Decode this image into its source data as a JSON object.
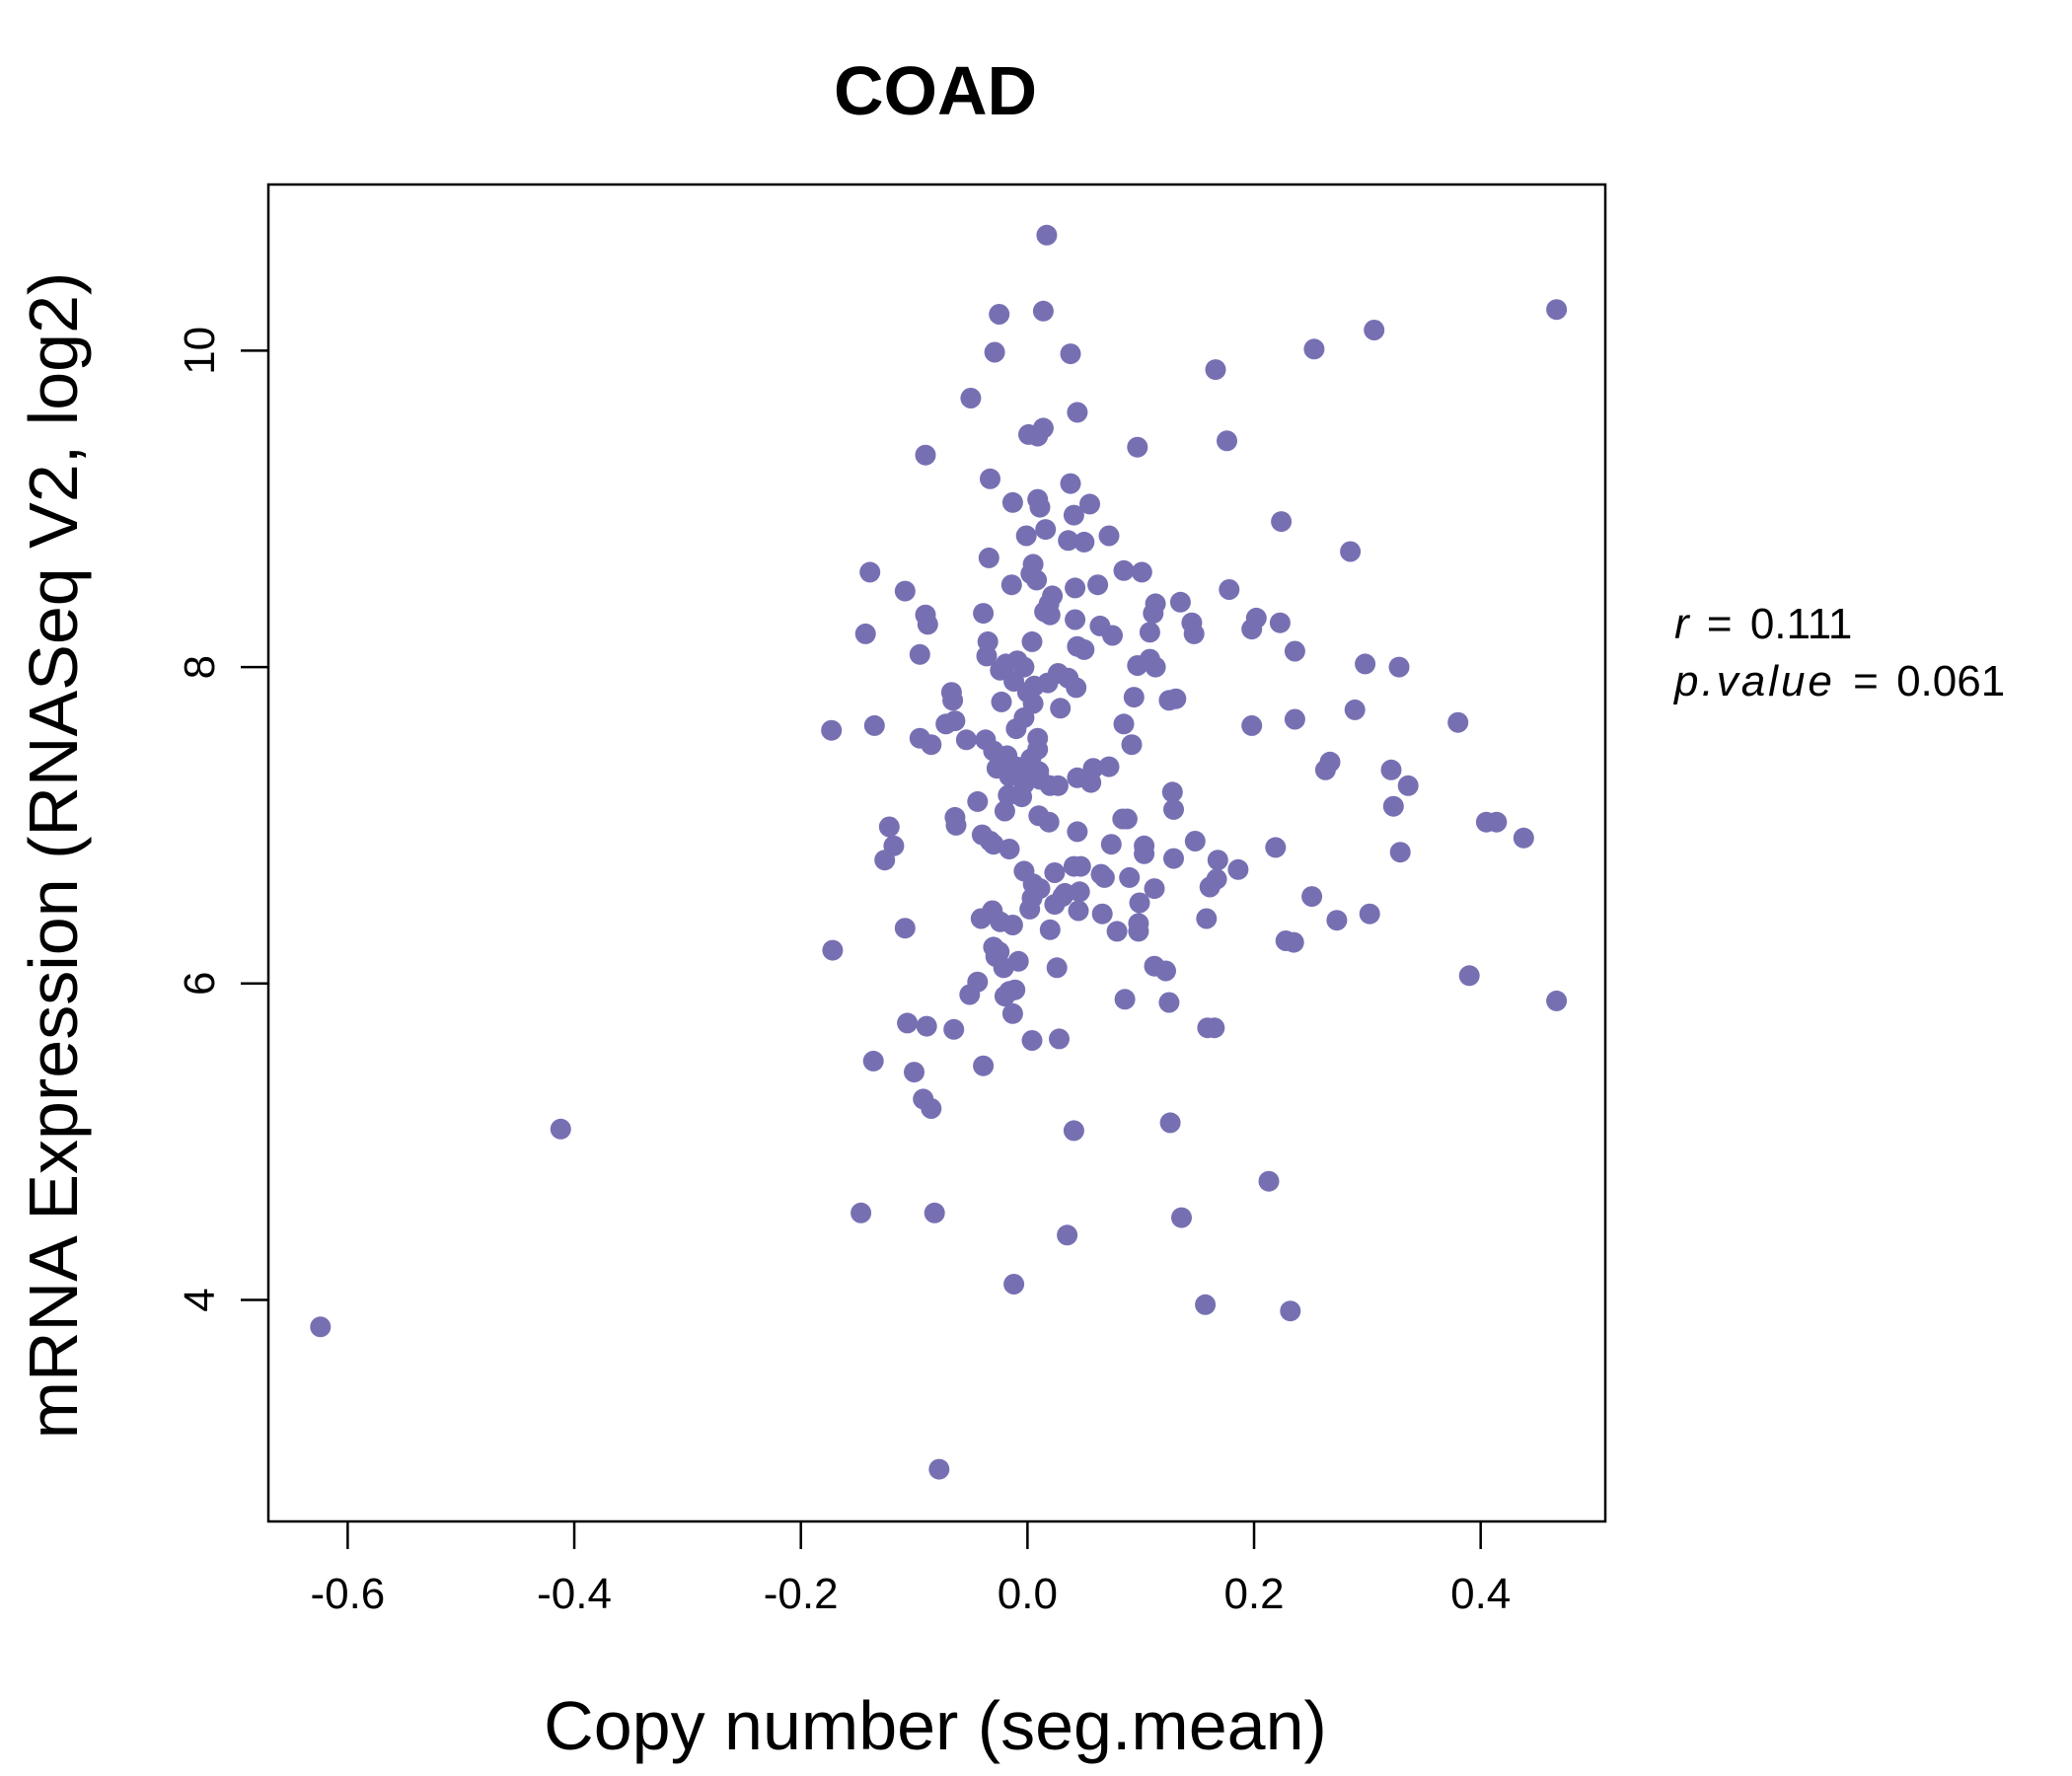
{
  "chart_data": {
    "type": "scatter",
    "title": "COAD",
    "xlabel": "Copy number (seg.mean)",
    "ylabel": "mRNA Expression (RNASeq V2, log2)",
    "xlim": [
      -0.67,
      0.51
    ],
    "ylim": [
      2.6,
      11.05
    ],
    "xticks": [
      -0.6,
      -0.4,
      -0.2,
      0.0,
      0.2,
      0.4
    ],
    "xtick_labels": [
      "-0.6",
      "-0.4",
      "-0.2",
      "0.0",
      "0.2",
      "0.4"
    ],
    "yticks": [
      4,
      6,
      8,
      10
    ],
    "ytick_labels": [
      "4",
      "6",
      "8",
      "10"
    ],
    "grid": false,
    "colors": {
      "points": "#7670b3",
      "title": "#7670b3"
    },
    "annotation": {
      "r_symbol": "r",
      "r_value": "0.111",
      "p_symbol": "p.value",
      "p_value": "0.061"
    },
    "series": [
      {
        "points": [
          [
            -0.624,
            3.83
          ],
          [
            -0.412,
            5.08
          ],
          [
            -0.078,
            2.93
          ],
          [
            0.017,
            10.73
          ],
          [
            0.467,
            10.26
          ],
          [
            -0.025,
            10.23
          ],
          [
            0.014,
            10.25
          ],
          [
            0.306,
            10.13
          ],
          [
            -0.029,
            9.99
          ],
          [
            0.038,
            9.98
          ],
          [
            0.253,
            10.01
          ],
          [
            0.166,
            9.88
          ],
          [
            -0.05,
            9.7
          ],
          [
            0.044,
            9.61
          ],
          [
            0.014,
            9.51
          ],
          [
            0.001,
            9.47
          ],
          [
            0.009,
            9.46
          ],
          [
            0.176,
            9.43
          ],
          [
            0.097,
            9.39
          ],
          [
            -0.09,
            9.34
          ],
          [
            -0.033,
            9.19
          ],
          [
            0.038,
            9.16
          ],
          [
            -0.013,
            9.04
          ],
          [
            0.009,
            9.06
          ],
          [
            0.011,
            9.01
          ],
          [
            0.055,
            9.03
          ],
          [
            0.041,
            8.96
          ],
          [
            0.224,
            8.92
          ],
          [
            0.016,
            8.87
          ],
          [
            -0.001,
            8.83
          ],
          [
            0.036,
            8.8
          ],
          [
            0.05,
            8.79
          ],
          [
            0.072,
            8.83
          ],
          [
            -0.034,
            8.69
          ],
          [
            0.285,
            8.73
          ],
          [
            0.005,
            8.65
          ],
          [
            0.003,
            8.59
          ],
          [
            -0.139,
            8.6
          ],
          [
            0.085,
            8.61
          ],
          [
            0.101,
            8.6
          ],
          [
            0.008,
            8.55
          ],
          [
            -0.014,
            8.52
          ],
          [
            0.042,
            8.5
          ],
          [
            0.062,
            8.52
          ],
          [
            -0.108,
            8.48
          ],
          [
            0.178,
            8.49
          ],
          [
            0.022,
            8.45
          ],
          [
            0.019,
            8.4
          ],
          [
            0.113,
            8.4
          ],
          [
            0.135,
            8.41
          ],
          [
            0.015,
            8.35
          ],
          [
            0.02,
            8.33
          ],
          [
            -0.039,
            8.34
          ],
          [
            -0.09,
            8.33
          ],
          [
            -0.088,
            8.27
          ],
          [
            0.042,
            8.3
          ],
          [
            0.064,
            8.26
          ],
          [
            0.111,
            8.34
          ],
          [
            0.145,
            8.28
          ],
          [
            0.202,
            8.31
          ],
          [
            0.223,
            8.28
          ],
          [
            -0.143,
            8.21
          ],
          [
            0.075,
            8.2
          ],
          [
            0.108,
            8.22
          ],
          [
            0.147,
            8.21
          ],
          [
            0.198,
            8.24
          ],
          [
            -0.035,
            8.16
          ],
          [
            0.004,
            8.16
          ],
          [
            0.044,
            8.13
          ],
          [
            0.05,
            8.11
          ],
          [
            -0.095,
            8.08
          ],
          [
            -0.036,
            8.07
          ],
          [
            0.236,
            8.1
          ],
          [
            -0.019,
            8.02
          ],
          [
            -0.009,
            8.04
          ],
          [
            -0.003,
            8.0
          ],
          [
            0.108,
            8.05
          ],
          [
            0.097,
            8.01
          ],
          [
            0.113,
            8.0
          ],
          [
            0.298,
            8.02
          ],
          [
            0.328,
            8.0
          ],
          [
            -0.024,
            7.98
          ],
          [
            0.027,
            7.96
          ],
          [
            0.036,
            7.93
          ],
          [
            -0.012,
            7.91
          ],
          [
            0.018,
            7.9
          ],
          [
            0.006,
            7.88
          ],
          [
            0.043,
            7.87
          ],
          [
            0.0,
            7.84
          ],
          [
            -0.067,
            7.84
          ],
          [
            -0.066,
            7.79
          ],
          [
            -0.023,
            7.78
          ],
          [
            0.005,
            7.77
          ],
          [
            0.094,
            7.81
          ],
          [
            0.125,
            7.79
          ],
          [
            0.131,
            7.8
          ],
          [
            0.029,
            7.74
          ],
          [
            0.289,
            7.73
          ],
          [
            -0.064,
            7.66
          ],
          [
            -0.072,
            7.64
          ],
          [
            -0.01,
            7.61
          ],
          [
            -0.003,
            7.68
          ],
          [
            0.085,
            7.64
          ],
          [
            0.198,
            7.63
          ],
          [
            0.236,
            7.67
          ],
          [
            0.38,
            7.65
          ],
          [
            -0.173,
            7.6
          ],
          [
            -0.135,
            7.63
          ],
          [
            -0.095,
            7.55
          ],
          [
            -0.085,
            7.51
          ],
          [
            -0.054,
            7.54
          ],
          [
            -0.037,
            7.54
          ],
          [
            0.009,
            7.55
          ],
          [
            0.092,
            7.51
          ],
          [
            -0.03,
            7.47
          ],
          [
            -0.018,
            7.44
          ],
          [
            0.003,
            7.42
          ],
          [
            0.009,
            7.48
          ],
          [
            -0.027,
            7.36
          ],
          [
            -0.01,
            7.37
          ],
          [
            0.0,
            7.38
          ],
          [
            0.01,
            7.34
          ],
          [
            0.058,
            7.36
          ],
          [
            0.072,
            7.37
          ],
          [
            0.267,
            7.4
          ],
          [
            0.263,
            7.35
          ],
          [
            0.321,
            7.35
          ],
          [
            -0.016,
            7.31
          ],
          [
            0.011,
            7.29
          ],
          [
            0.044,
            7.3
          ],
          [
            0.056,
            7.27
          ],
          [
            -0.003,
            7.26
          ],
          [
            0.02,
            7.25
          ],
          [
            0.027,
            7.25
          ],
          [
            0.128,
            7.21
          ],
          [
            0.336,
            7.25
          ],
          [
            -0.017,
            7.19
          ],
          [
            -0.005,
            7.18
          ],
          [
            -0.044,
            7.15
          ],
          [
            0.323,
            7.12
          ],
          [
            0.129,
            7.1
          ],
          [
            -0.02,
            7.09
          ],
          [
            0.01,
            7.06
          ],
          [
            0.084,
            7.04
          ],
          [
            0.088,
            7.04
          ],
          [
            -0.064,
            7.05
          ],
          [
            -0.063,
            7.0
          ],
          [
            0.019,
            7.02
          ],
          [
            -0.122,
            6.99
          ],
          [
            0.405,
            7.02
          ],
          [
            0.414,
            7.02
          ],
          [
            -0.04,
            6.94
          ],
          [
            0.044,
            6.96
          ],
          [
            0.148,
            6.9
          ],
          [
            0.438,
            6.92
          ],
          [
            -0.033,
            6.9
          ],
          [
            -0.03,
            6.88
          ],
          [
            -0.118,
            6.87
          ],
          [
            0.074,
            6.88
          ],
          [
            0.103,
            6.87
          ],
          [
            -0.016,
            6.85
          ],
          [
            0.219,
            6.86
          ],
          [
            0.329,
            6.83
          ],
          [
            -0.126,
            6.78
          ],
          [
            0.103,
            6.82
          ],
          [
            0.129,
            6.79
          ],
          [
            0.041,
            6.74
          ],
          [
            0.047,
            6.74
          ],
          [
            0.168,
            6.78
          ],
          [
            -0.003,
            6.71
          ],
          [
            0.024,
            6.7
          ],
          [
            0.065,
            6.69
          ],
          [
            0.068,
            6.67
          ],
          [
            0.09,
            6.67
          ],
          [
            0.186,
            6.72
          ],
          [
            0.167,
            6.66
          ],
          [
            0.005,
            6.63
          ],
          [
            0.011,
            6.6
          ],
          [
            0.046,
            6.58
          ],
          [
            0.112,
            6.6
          ],
          [
            0.161,
            6.61
          ],
          [
            0.033,
            6.57
          ],
          [
            0.004,
            6.54
          ],
          [
            0.031,
            6.55
          ],
          [
            0.099,
            6.51
          ],
          [
            0.251,
            6.55
          ],
          [
            0.024,
            6.5
          ],
          [
            0.045,
            6.46
          ],
          [
            0.066,
            6.44
          ],
          [
            -0.031,
            6.46
          ],
          [
            -0.041,
            6.41
          ],
          [
            0.002,
            6.47
          ],
          [
            0.302,
            6.44
          ],
          [
            0.158,
            6.41
          ],
          [
            0.273,
            6.4
          ],
          [
            -0.108,
            6.35
          ],
          [
            -0.024,
            6.39
          ],
          [
            -0.013,
            6.37
          ],
          [
            0.098,
            6.38
          ],
          [
            0.02,
            6.34
          ],
          [
            0.079,
            6.33
          ],
          [
            0.098,
            6.33
          ],
          [
            0.228,
            6.27
          ],
          [
            0.235,
            6.26
          ],
          [
            -0.172,
            6.21
          ],
          [
            -0.03,
            6.23
          ],
          [
            -0.025,
            6.2
          ],
          [
            -0.028,
            6.17
          ],
          [
            -0.008,
            6.14
          ],
          [
            -0.021,
            6.1
          ],
          [
            0.112,
            6.11
          ],
          [
            0.026,
            6.1
          ],
          [
            0.122,
            6.08
          ],
          [
            0.39,
            6.05
          ],
          [
            -0.044,
            6.01
          ],
          [
            -0.016,
            5.95
          ],
          [
            -0.011,
            5.96
          ],
          [
            -0.051,
            5.93
          ],
          [
            -0.02,
            5.92
          ],
          [
            0.086,
            5.9
          ],
          [
            0.125,
            5.88
          ],
          [
            0.467,
            5.89
          ],
          [
            -0.013,
            5.81
          ],
          [
            -0.106,
            5.75
          ],
          [
            -0.089,
            5.73
          ],
          [
            -0.065,
            5.71
          ],
          [
            0.159,
            5.72
          ],
          [
            0.165,
            5.72
          ],
          [
            0.004,
            5.64
          ],
          [
            0.028,
            5.65
          ],
          [
            -0.136,
            5.51
          ],
          [
            -0.039,
            5.48
          ],
          [
            -0.1,
            5.44
          ],
          [
            -0.092,
            5.27
          ],
          [
            -0.085,
            5.21
          ],
          [
            0.041,
            5.07
          ],
          [
            0.126,
            5.12
          ],
          [
            0.213,
            4.75
          ],
          [
            -0.147,
            4.55
          ],
          [
            -0.082,
            4.55
          ],
          [
            0.136,
            4.52
          ],
          [
            0.035,
            4.41
          ],
          [
            -0.012,
            4.1
          ],
          [
            0.157,
            3.97
          ],
          [
            0.232,
            3.93
          ]
        ]
      }
    ]
  }
}
